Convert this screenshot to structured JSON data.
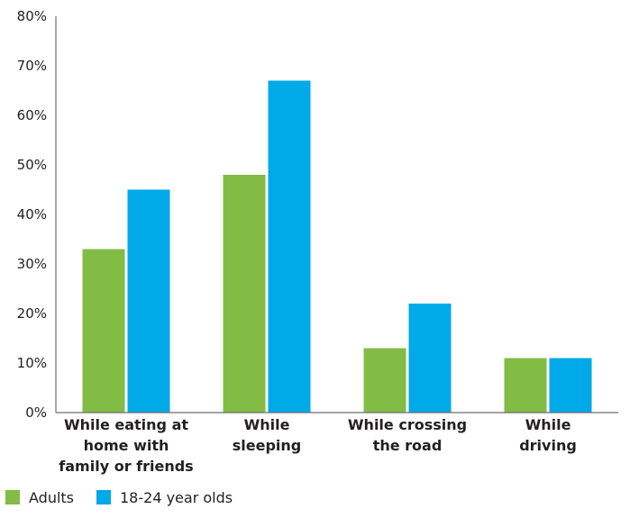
{
  "chart_data": {
    "type": "bar",
    "categories": [
      [
        "While eating at",
        "home with",
        "family or friends"
      ],
      [
        "While",
        "sleeping"
      ],
      [
        "While crossing",
        "the road"
      ],
      [
        "While",
        "driving"
      ]
    ],
    "series": [
      {
        "name": "Adults",
        "color": "#82bc45",
        "values": [
          33,
          48,
          13,
          11
        ]
      },
      {
        "name": "18-24 year olds",
        "color": "#00a9e8",
        "values": [
          45,
          67,
          22,
          11
        ]
      }
    ],
    "yticks": [
      "0%",
      "10%",
      "20%",
      "30%",
      "40%",
      "50%",
      "60%",
      "70%",
      "80%"
    ],
    "ylim": [
      0,
      80
    ],
    "grid": false,
    "legend": "bottom-left",
    "axis_color": "#6d6e71"
  }
}
